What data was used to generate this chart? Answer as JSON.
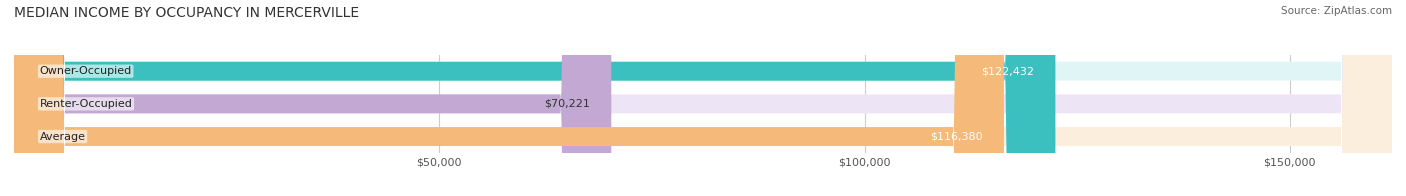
{
  "title": "MEDIAN INCOME BY OCCUPANCY IN MERCERVILLE",
  "source": "Source: ZipAtlas.com",
  "categories": [
    "Owner-Occupied",
    "Renter-Occupied",
    "Average"
  ],
  "values": [
    122432,
    70221,
    116380
  ],
  "bar_colors": [
    "#3bbfbf",
    "#c4a8d4",
    "#f5b97a"
  ],
  "bar_bg_colors": [
    "#e0f5f5",
    "#ede5f5",
    "#fceedd"
  ],
  "label_colors": [
    "white",
    "#333333",
    "white"
  ],
  "value_labels": [
    "$122,432",
    "$70,221",
    "$116,380"
  ],
  "xlim": [
    0,
    162000
  ],
  "xticks": [
    0,
    50000,
    100000,
    150000
  ],
  "xticklabels": [
    "",
    "$50,000",
    "$100,000",
    "$150,000"
  ],
  "title_fontsize": 10,
  "source_fontsize": 7.5,
  "bar_label_fontsize": 8,
  "value_label_fontsize": 8,
  "background_color": "#ffffff",
  "grid_color": "#cccccc"
}
